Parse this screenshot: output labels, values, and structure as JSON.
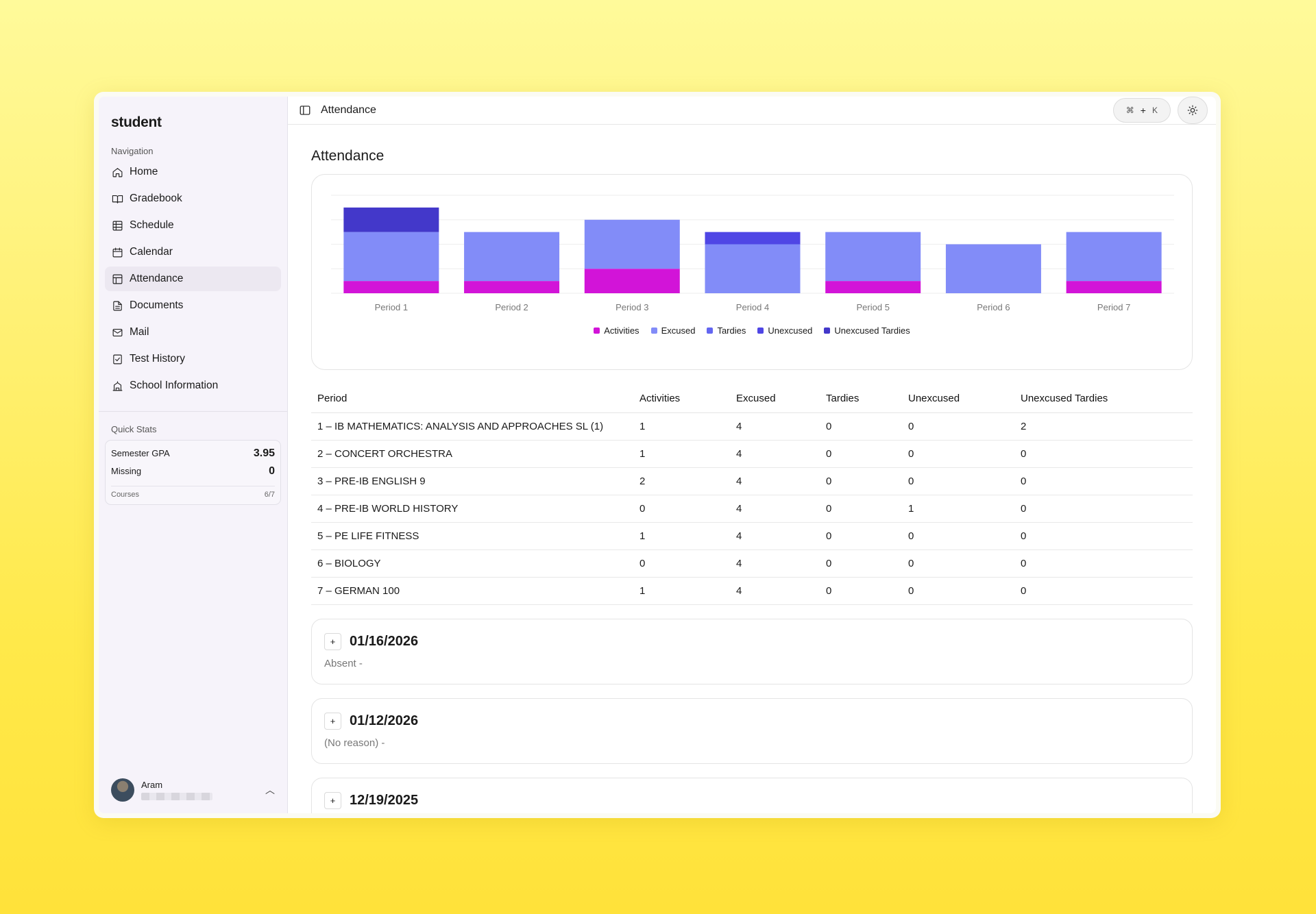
{
  "app": {
    "brand": "student",
    "page_title": "Attendance"
  },
  "sidebar": {
    "nav_heading": "Navigation",
    "items": [
      {
        "label": "Home",
        "icon": "home-icon"
      },
      {
        "label": "Gradebook",
        "icon": "book-icon"
      },
      {
        "label": "Schedule",
        "icon": "table-icon"
      },
      {
        "label": "Calendar",
        "icon": "calendar-icon"
      },
      {
        "label": "Attendance",
        "icon": "attendance-icon",
        "active": true
      },
      {
        "label": "Documents",
        "icon": "document-icon"
      },
      {
        "label": "Mail",
        "icon": "mail-icon"
      },
      {
        "label": "Test History",
        "icon": "clipboard-check-icon"
      },
      {
        "label": "School Information",
        "icon": "school-icon"
      }
    ],
    "quick_stats": {
      "heading": "Quick Stats",
      "gpa_label": "Semester GPA",
      "gpa_value": "3.95",
      "missing_label": "Missing",
      "missing_value": "0",
      "courses_label": "Courses",
      "courses_value": "6/7"
    },
    "user": {
      "name": "Aram"
    }
  },
  "topbar": {
    "title": "Attendance",
    "kbd_cmd": "⌘",
    "kbd_plus": "+",
    "kbd_key": "K"
  },
  "colors": {
    "activities": "#d214d8",
    "excused": "#828cf8",
    "tardies": "#6366f1",
    "unexcused": "#4f46e5",
    "unexcused_tardies": "#4338ca"
  },
  "chart_data": {
    "type": "bar",
    "stacked": true,
    "categories": [
      "Period 1",
      "Period 2",
      "Period 3",
      "Period 4",
      "Period 5",
      "Period 6",
      "Period 7"
    ],
    "series": [
      {
        "name": "Activities",
        "values": [
          1,
          1,
          2,
          0,
          1,
          0,
          1
        ]
      },
      {
        "name": "Excused",
        "values": [
          4,
          4,
          4,
          4,
          4,
          4,
          4
        ]
      },
      {
        "name": "Tardies",
        "values": [
          0,
          0,
          0,
          0,
          0,
          0,
          0
        ]
      },
      {
        "name": "Unexcused",
        "values": [
          0,
          0,
          0,
          1,
          0,
          0,
          0
        ]
      },
      {
        "name": "Unexcused Tardies",
        "values": [
          2,
          0,
          0,
          0,
          0,
          0,
          0
        ]
      }
    ],
    "ylim": [
      0,
      8
    ],
    "grid": true,
    "legend": "bottom"
  },
  "table": {
    "headers": [
      "Period",
      "Activities",
      "Excused",
      "Tardies",
      "Unexcused",
      "Unexcused Tardies"
    ],
    "rows": [
      [
        "1 – IB MATHEMATICS: ANALYSIS AND APPROACHES SL (1)",
        "1",
        "4",
        "0",
        "0",
        "2"
      ],
      [
        "2 – CONCERT ORCHESTRA",
        "1",
        "4",
        "0",
        "0",
        "0"
      ],
      [
        "3 – PRE-IB ENGLISH 9",
        "2",
        "4",
        "0",
        "0",
        "0"
      ],
      [
        "4 – PRE-IB WORLD HISTORY",
        "0",
        "4",
        "0",
        "1",
        "0"
      ],
      [
        "5 – PE LIFE FITNESS",
        "1",
        "4",
        "0",
        "0",
        "0"
      ],
      [
        "6 – BIOLOGY",
        "0",
        "4",
        "0",
        "0",
        "0"
      ],
      [
        "7 – GERMAN 100",
        "1",
        "4",
        "0",
        "0",
        "0"
      ]
    ]
  },
  "entries": [
    {
      "toggle": "+",
      "date": "01/16/2026",
      "reason": "Absent -"
    },
    {
      "toggle": "+",
      "date": "01/12/2026",
      "reason": "(No reason) -"
    },
    {
      "toggle": "+",
      "date": "12/19/2025",
      "reason": ""
    }
  ]
}
